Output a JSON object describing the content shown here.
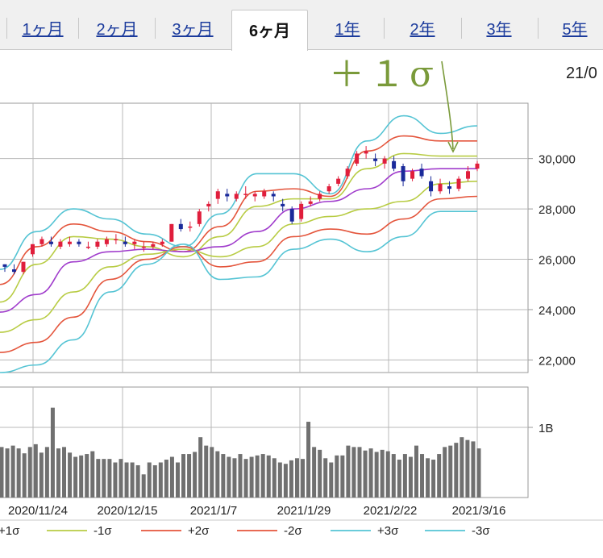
{
  "tabs": [
    {
      "label": "1ヶ月",
      "active": false
    },
    {
      "label": "2ヶ月",
      "active": false
    },
    {
      "label": "3ヶ月",
      "active": false
    },
    {
      "label": "6ヶ月",
      "active": true
    },
    {
      "label": "1年",
      "active": false
    },
    {
      "label": "2年",
      "active": false
    },
    {
      "label": "3年",
      "active": false
    },
    {
      "label": "5年",
      "active": false
    }
  ],
  "annotation": {
    "text": "＋１σ",
    "color": "#7a9a3a"
  },
  "date_partial": "21/0",
  "chart_data": {
    "type": "line",
    "price_axis": {
      "ticks": [
        22000,
        24000,
        26000,
        28000,
        30000
      ],
      "ylim": [
        21500,
        32200
      ]
    },
    "volume_axis": {
      "ticks_label": "1B",
      "tick_value": 1.0
    },
    "x_labels": [
      "2020/11/24",
      "2020/12/15",
      "2021/1/7",
      "2021/1/29",
      "2021/2/22",
      "2021/3/16"
    ],
    "series": [
      {
        "name": "+3σ",
        "color": "#55c4d4",
        "values": [
          25600,
          27100,
          28000,
          27600,
          27000,
          26500,
          27800,
          29400,
          29400,
          28600,
          30700,
          31700,
          31000,
          31300
        ]
      },
      {
        "name": "+2σ",
        "color": "#e4553c",
        "values": [
          25000,
          26500,
          27400,
          27100,
          26700,
          26300,
          27300,
          28700,
          28800,
          28500,
          30300,
          30900,
          30700,
          30700
        ]
      },
      {
        "name": "+1σ",
        "color": "#b8cc44",
        "values": [
          24300,
          25800,
          26900,
          26800,
          26500,
          26100,
          26900,
          28100,
          28400,
          28400,
          29600,
          30200,
          30100,
          30100
        ]
      },
      {
        "name": "MA",
        "color": "#a03ccc",
        "values": [
          23900,
          24600,
          25900,
          26300,
          26400,
          26300,
          26500,
          27100,
          28000,
          28300,
          28800,
          29500,
          29600,
          29600
        ]
      },
      {
        "name": "-1σ",
        "color": "#b8cc44",
        "values": [
          23100,
          23600,
          24700,
          25700,
          26200,
          26400,
          26100,
          26500,
          27400,
          27700,
          28000,
          28300,
          29000,
          29100
        ]
      },
      {
        "name": "-2σ",
        "color": "#e4553c",
        "values": [
          22300,
          22700,
          23700,
          25200,
          26000,
          26500,
          25700,
          25900,
          26900,
          27200,
          27000,
          27600,
          28400,
          28500
        ]
      },
      {
        "name": "-3σ",
        "color": "#55c4d4",
        "values": [
          21500,
          21800,
          22800,
          24700,
          25800,
          26600,
          25200,
          25300,
          26400,
          26800,
          26300,
          26900,
          27900,
          27900
        ]
      }
    ],
    "candles": [
      [
        25800,
        25800,
        25700,
        25500
      ],
      [
        25600,
        25800,
        25500,
        25400
      ],
      [
        25500,
        25900,
        25900,
        25400
      ],
      [
        26200,
        26600,
        26600,
        26100
      ],
      [
        26600,
        26900,
        26800,
        26500
      ],
      [
        26700,
        26900,
        26600,
        26500
      ],
      [
        26500,
        26800,
        26700,
        26400
      ],
      [
        26600,
        26900,
        26700,
        26500
      ],
      [
        26700,
        26800,
        26600,
        26500
      ],
      [
        26500,
        26700,
        26500,
        26400
      ],
      [
        26500,
        26800,
        26700,
        26400
      ],
      [
        26600,
        26900,
        26800,
        26500
      ],
      [
        26800,
        27000,
        26800,
        26600
      ],
      [
        26700,
        26900,
        26600,
        26500
      ],
      [
        26600,
        26800,
        26700,
        26400
      ],
      [
        26500,
        26700,
        26500,
        26300
      ],
      [
        26500,
        26700,
        26600,
        26400
      ],
      [
        26600,
        26800,
        26700,
        26500
      ],
      [
        26700,
        27400,
        27400,
        26700
      ],
      [
        27400,
        27600,
        27200,
        27100
      ],
      [
        27300,
        27500,
        27300,
        27100
      ],
      [
        27400,
        28000,
        27900,
        27300
      ],
      [
        28100,
        28300,
        28200,
        27900
      ],
      [
        28400,
        28800,
        28700,
        28200
      ],
      [
        28600,
        28800,
        28500,
        28300
      ],
      [
        28400,
        28700,
        28600,
        28300
      ],
      [
        28600,
        28900,
        28600,
        28400
      ],
      [
        28500,
        28700,
        28600,
        28300
      ],
      [
        28500,
        28800,
        28700,
        28400
      ],
      [
        28600,
        28700,
        28500,
        28300
      ],
      [
        28200,
        28400,
        28100,
        27900
      ],
      [
        28000,
        28100,
        27500,
        27400
      ],
      [
        27600,
        28300,
        28200,
        27500
      ],
      [
        28200,
        28500,
        28300,
        28100
      ],
      [
        28400,
        28700,
        28600,
        28300
      ],
      [
        28700,
        29000,
        28900,
        28600
      ],
      [
        29000,
        29300,
        29200,
        28900
      ],
      [
        29300,
        29700,
        29600,
        29200
      ],
      [
        29800,
        30300,
        30200,
        29700
      ],
      [
        30200,
        30500,
        30300,
        30000
      ],
      [
        30000,
        30200,
        29900,
        29700
      ],
      [
        29800,
        30100,
        30000,
        29600
      ],
      [
        29900,
        30100,
        29600,
        29500
      ],
      [
        29700,
        29800,
        29100,
        28900
      ],
      [
        29200,
        29600,
        29500,
        29100
      ],
      [
        29600,
        29800,
        29300,
        29200
      ],
      [
        29100,
        29300,
        28700,
        28500
      ],
      [
        28700,
        29200,
        29000,
        28600
      ],
      [
        28900,
        29100,
        28800,
        28600
      ],
      [
        28800,
        29300,
        29200,
        28700
      ],
      [
        29200,
        29700,
        29500,
        29100
      ],
      [
        29600,
        29900,
        29800,
        29500
      ]
    ],
    "volumes": [
      0.72,
      0.7,
      0.74,
      0.7,
      0.63,
      0.72,
      0.76,
      0.64,
      0.72,
      1.28,
      0.7,
      0.72,
      0.64,
      0.58,
      0.6,
      0.62,
      0.66,
      0.55,
      0.55,
      0.55,
      0.5,
      0.55,
      0.5,
      0.5,
      0.46,
      0.33,
      0.5,
      0.46,
      0.5,
      0.54,
      0.58,
      0.5,
      0.62,
      0.62,
      0.65,
      0.86,
      0.74,
      0.72,
      0.66,
      0.62,
      0.58,
      0.56,
      0.62,
      0.55,
      0.58,
      0.6,
      0.62,
      0.6,
      0.56,
      0.5,
      0.48,
      0.53,
      0.56,
      0.55,
      1.08,
      0.72,
      0.68,
      0.56,
      0.5,
      0.6,
      0.6,
      0.74,
      0.72,
      0.72,
      0.67,
      0.7,
      0.65,
      0.68,
      0.66,
      0.62,
      0.54,
      0.62,
      0.58,
      0.74,
      0.62,
      0.56,
      0.54,
      0.62,
      0.72,
      0.74,
      0.78,
      0.86,
      0.82,
      0.8,
      0.7
    ],
    "legend": [
      {
        "label": "+1σ",
        "color": "#b8cc44"
      },
      {
        "label": "-1σ",
        "color": "#b8cc44"
      },
      {
        "label": "+2σ",
        "color": "#e4553c"
      },
      {
        "label": "-2σ",
        "color": "#e4553c"
      },
      {
        "label": "+3σ",
        "color": "#55c4d4"
      },
      {
        "label": "-3σ",
        "color": "#55c4d4"
      }
    ]
  }
}
